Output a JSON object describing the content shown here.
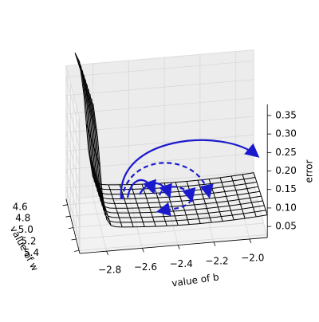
{
  "chart_data": {
    "type": "surface3d",
    "xlabel": "value of b",
    "ylabel": "value of w",
    "zlabel": "error",
    "xlim": [
      -2.95,
      -1.9
    ],
    "ylim": [
      4.5,
      5.45
    ],
    "zlim": [
      0.02,
      0.38
    ],
    "xticks": [
      {
        "value": -2.8,
        "label": "−2.8"
      },
      {
        "value": -2.6,
        "label": "−2.6"
      },
      {
        "value": -2.4,
        "label": "−2.4"
      },
      {
        "value": -2.2,
        "label": "−2.2"
      },
      {
        "value": -2.0,
        "label": "−2.0"
      }
    ],
    "yticks": [
      4.6,
      4.8,
      {
        "value": 5.0,
        "label": "5.0"
      },
      5.2,
      5.4
    ],
    "zticks": [
      0.05,
      {
        "value": 0.1,
        "label": "0.10"
      },
      0.15,
      {
        "value": 0.2,
        "label": "0.20"
      },
      0.25,
      {
        "value": 0.3,
        "label": "0.30"
      },
      0.35
    ],
    "color": "#1a1acc",
    "grid": true
  }
}
